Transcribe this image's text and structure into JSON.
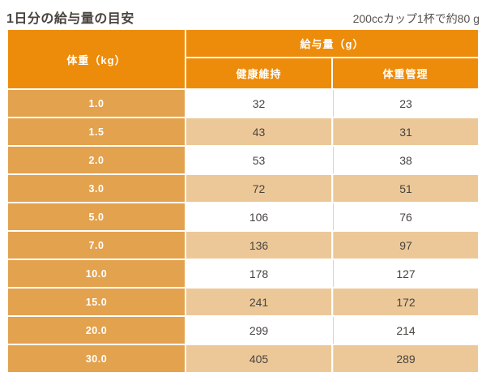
{
  "page": {
    "title": "1日分の給与量の目安",
    "note": "200ccカップ1杯で約80 g"
  },
  "colors": {
    "header_orange": "#ED8C0B",
    "label_orange": "#E3A24E",
    "stripe_tan": "#ECC899",
    "divider_gray": "#D8D4CD",
    "title_text": "#49443F",
    "note_text": "#56524D",
    "value_text": "#474440"
  },
  "table": {
    "weight_header": "体重（kg）",
    "amount_header": "給与量（g）",
    "sub_headers": [
      "健康維持",
      "体重管理"
    ],
    "rows": [
      {
        "weight": "1.0",
        "maintenance": "32",
        "weight_control": "23"
      },
      {
        "weight": "1.5",
        "maintenance": "43",
        "weight_control": "31"
      },
      {
        "weight": "2.0",
        "maintenance": "53",
        "weight_control": "38"
      },
      {
        "weight": "3.0",
        "maintenance": "72",
        "weight_control": "51"
      },
      {
        "weight": "5.0",
        "maintenance": "106",
        "weight_control": "76"
      },
      {
        "weight": "7.0",
        "maintenance": "136",
        "weight_control": "97"
      },
      {
        "weight": "10.0",
        "maintenance": "178",
        "weight_control": "127"
      },
      {
        "weight": "15.0",
        "maintenance": "241",
        "weight_control": "172"
      },
      {
        "weight": "20.0",
        "maintenance": "299",
        "weight_control": "214"
      },
      {
        "weight": "30.0",
        "maintenance": "405",
        "weight_control": "289"
      }
    ]
  },
  "chart_data": {
    "type": "table",
    "title": "1日分の給与量の目安",
    "note": "200ccカップ1杯で約80 g",
    "columns": [
      "体重（kg）",
      "給与量（g）健康維持",
      "給与量（g）体重管理"
    ],
    "rows": [
      [
        1.0,
        32,
        23
      ],
      [
        1.5,
        43,
        31
      ],
      [
        2.0,
        53,
        38
      ],
      [
        3.0,
        72,
        51
      ],
      [
        5.0,
        106,
        76
      ],
      [
        7.0,
        136,
        97
      ],
      [
        10.0,
        178,
        127
      ],
      [
        15.0,
        241,
        172
      ],
      [
        20.0,
        299,
        214
      ],
      [
        30.0,
        405,
        289
      ]
    ]
  }
}
